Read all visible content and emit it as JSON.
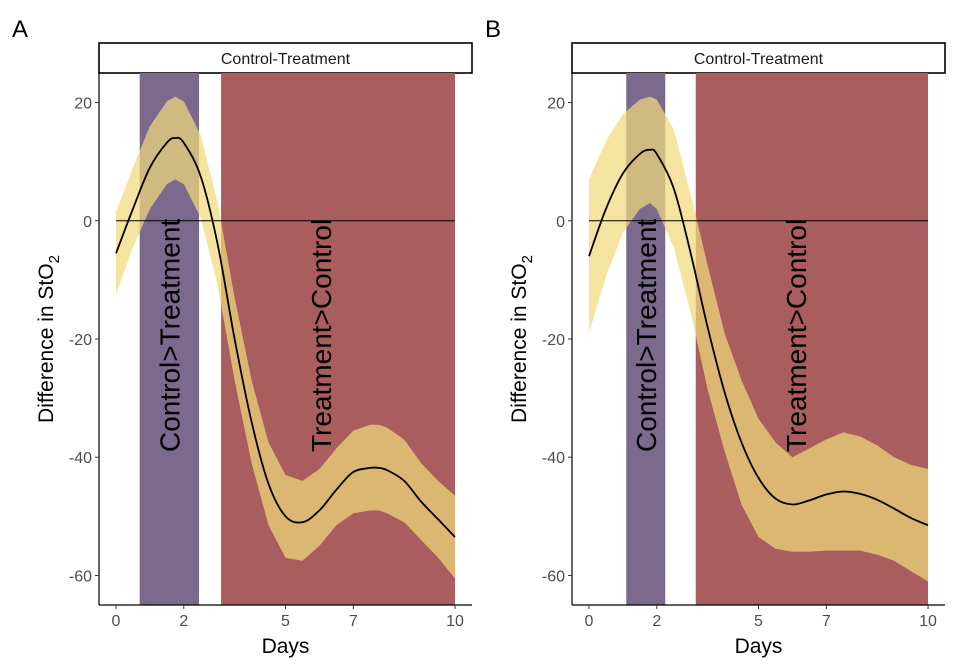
{
  "panels": [
    {
      "letter": "A"
    },
    {
      "letter": "B"
    }
  ],
  "chart_data": [
    {
      "type": "line",
      "panel": "A",
      "strip_label": "Control-Treatment",
      "xlabel": "Days",
      "ylabel_main": "Difference in StO",
      "ylabel_sub": "2",
      "xlim": [
        -0.5,
        10.5
      ],
      "ylim": [
        -65,
        25
      ],
      "x_ticks": [
        0,
        2,
        5,
        7,
        10
      ],
      "y_ticks": [
        -60,
        -40,
        -20,
        0,
        20
      ],
      "y_tick_labels": [
        "-60",
        "-40",
        "-20",
        "0",
        "20"
      ],
      "reference_line_y": 0,
      "colors": {
        "ribbon": "#f0da7a",
        "line": "#000000",
        "region_control": "#7b6a8d",
        "region_treatment": "#a95d5f"
      },
      "regions": [
        {
          "label": "Control>Treatment",
          "x_start": 0.7,
          "x_end": 2.45,
          "color": "#7b6a8d"
        },
        {
          "label": "Treatment>Control",
          "x_start": 3.1,
          "x_end": 10.0,
          "color": "#a95d5f"
        }
      ],
      "series": [
        {
          "x": [
            0,
            0.5,
            1,
            1.5,
            1.75,
            2,
            2.5,
            3,
            3.5,
            4,
            4.5,
            5,
            5.5,
            6,
            6.5,
            7,
            7.5,
            7.75,
            8,
            8.5,
            9,
            9.5,
            10
          ],
          "y": [
            -5.5,
            2,
            9,
            13.2,
            14,
            13.2,
            7.5,
            -4,
            -20,
            -34,
            -44.5,
            -50,
            -51,
            -49,
            -45.5,
            -42.5,
            -41.8,
            -41.8,
            -42.2,
            -44,
            -47.5,
            -50.5,
            -53.5
          ],
          "lower": [
            -12.5,
            -4.5,
            2,
            6.2,
            7,
            6.2,
            0.5,
            -11,
            -27,
            -41,
            -51.5,
            -57,
            -57.5,
            -55,
            -51.5,
            -49.5,
            -49,
            -49,
            -49.5,
            -51,
            -54,
            -57,
            -60.5
          ],
          "upper": [
            1.5,
            9,
            16,
            20.2,
            21,
            20.2,
            14.5,
            3,
            -13,
            -27,
            -37.5,
            -43,
            -44,
            -42,
            -38.5,
            -35.5,
            -34.5,
            -34.5,
            -35,
            -37,
            -41,
            -44,
            -46.5
          ]
        }
      ]
    },
    {
      "type": "line",
      "panel": "B",
      "strip_label": "Control-Treatment",
      "xlabel": "Days",
      "ylabel_main": "Difference in StO",
      "ylabel_sub": "2",
      "xlim": [
        -0.5,
        10.5
      ],
      "ylim": [
        -65,
        25
      ],
      "x_ticks": [
        0,
        2,
        5,
        7,
        10
      ],
      "y_ticks": [
        -60,
        -40,
        -20,
        0,
        20
      ],
      "y_tick_labels": [
        "-60",
        "-40",
        "-20",
        "0",
        "20"
      ],
      "reference_line_y": 0,
      "colors": {
        "ribbon": "#f0da7a",
        "line": "#000000",
        "region_control": "#7b6a8d",
        "region_treatment": "#a95d5f"
      },
      "regions": [
        {
          "label": "Control>Treatment",
          "x_start": 1.1,
          "x_end": 2.25,
          "color": "#7b6a8d"
        },
        {
          "label": "Treatment>Control",
          "x_start": 3.15,
          "x_end": 10.0,
          "color": "#a95d5f"
        }
      ],
      "series": [
        {
          "x": [
            0,
            0.5,
            1,
            1.5,
            1.8,
            2,
            2.5,
            3,
            3.5,
            4,
            4.5,
            5,
            5.5,
            6,
            6.5,
            7,
            7.5,
            8,
            8.5,
            9,
            9.5,
            10
          ],
          "y": [
            -6,
            2,
            8,
            11.3,
            12,
            11.3,
            5.5,
            -5.5,
            -18,
            -29,
            -37.5,
            -43.5,
            -47,
            -48,
            -47.3,
            -46.3,
            -45.8,
            -46.2,
            -47.2,
            -48.7,
            -50.3,
            -51.5
          ],
          "lower": [
            -19,
            -9.5,
            -2,
            2,
            3,
            2,
            -4.5,
            -15.5,
            -28.5,
            -39,
            -48,
            -53.5,
            -55.5,
            -56,
            -56,
            -55.8,
            -55.8,
            -55.8,
            -56.5,
            -57.5,
            -59.3,
            -61
          ],
          "upper": [
            7,
            13.5,
            18,
            20.5,
            21,
            20.5,
            15.5,
            4.5,
            -7.5,
            -19,
            -27,
            -33.5,
            -37.5,
            -40,
            -38.5,
            -37,
            -35.8,
            -36.5,
            -38,
            -40,
            -41.3,
            -42
          ]
        }
      ]
    }
  ]
}
